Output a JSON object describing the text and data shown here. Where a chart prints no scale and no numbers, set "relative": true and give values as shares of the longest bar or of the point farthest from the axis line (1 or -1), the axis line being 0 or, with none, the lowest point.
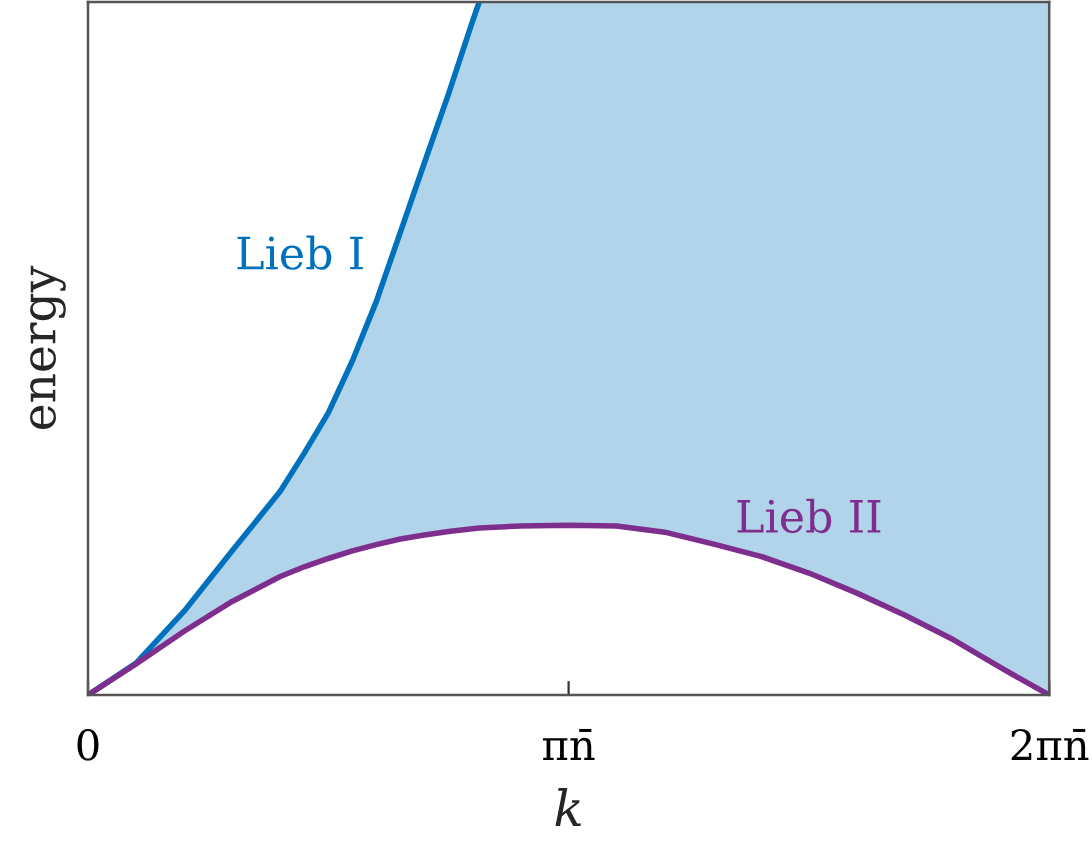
{
  "chart_data": {
    "type": "line",
    "relative": true,
    "xlabel": "k",
    "ylabel": "energy",
    "x": [
      0,
      0.1,
      0.2,
      0.3,
      0.4,
      0.45,
      0.5,
      0.55,
      0.6,
      0.65,
      0.7,
      0.75,
      0.8,
      0.814,
      0.9,
      1.0,
      1.1,
      1.2,
      1.3,
      1.4,
      1.5,
      1.6,
      1.7,
      1.8,
      1.9,
      2.0
    ],
    "xlim": [
      0,
      2
    ],
    "xticks": [
      0,
      {
        "value": 1,
        "label": "πn̄"
      },
      {
        "value": 2,
        "label": "2πn̄"
      }
    ],
    "series": [
      {
        "name": "Lieb I",
        "color": "#0072bd",
        "values": [
          0,
          0.046,
          0.121,
          0.208,
          0.294,
          0.349,
          0.407,
          0.482,
          0.568,
          0.668,
          0.768,
          0.867,
          0.972,
          1.0,
          null,
          null,
          null,
          null,
          null,
          null,
          null,
          null,
          null,
          null,
          null,
          null
        ],
        "lower": [
          0,
          0.045,
          0.092,
          0.135,
          0.171,
          0.185,
          0.197,
          0.208,
          0.217,
          0.225,
          0.231,
          0.236,
          0.24,
          0.241,
          0.244,
          0.245,
          0.244,
          0.235,
          0.218,
          0.2,
          0.176,
          0.147,
          0.115,
          0.08,
          0.039,
          0
        ],
        "upper": [
          0,
          0.046,
          0.121,
          0.208,
          0.294,
          0.349,
          0.407,
          0.482,
          0.568,
          0.668,
          0.768,
          0.867,
          0.972,
          1.0,
          1.0,
          1.0,
          1.0,
          1.0,
          1.0,
          1.0,
          1.0,
          1.0,
          1.0,
          1.0,
          1.0,
          1.0
        ]
      },
      {
        "name": "Lieb II",
        "color": "#7e2f8e",
        "values": [
          0,
          0.045,
          0.092,
          0.135,
          0.171,
          0.185,
          0.197,
          0.208,
          0.217,
          0.225,
          0.231,
          0.236,
          0.24,
          0.241,
          0.244,
          0.245,
          0.244,
          0.235,
          0.218,
          0.2,
          0.176,
          0.147,
          0.115,
          0.08,
          0.039,
          0
        ]
      }
    ]
  }
}
